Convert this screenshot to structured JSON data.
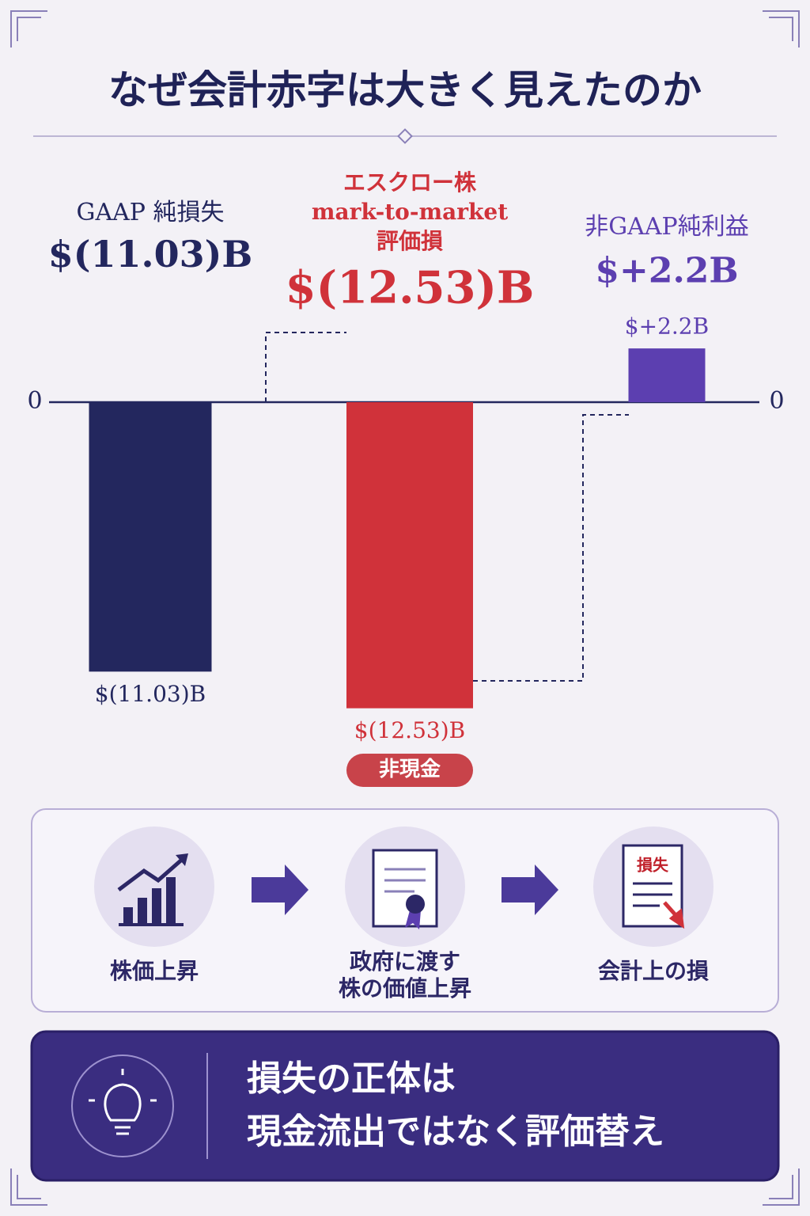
{
  "title": "なぜ会計赤字は大きく見えたのか",
  "chart_data": {
    "type": "bar",
    "categories": [
      "GAAP 純損失",
      "エスクロー株\nmark-to-market\n評価損",
      "非GAAP純利益"
    ],
    "values": [
      -11.03,
      -12.53,
      2.2
    ],
    "value_labels": [
      "$(11.03)B",
      "$(12.53)B",
      "$+2.2B"
    ],
    "colors": [
      "#23275e",
      "#d0323a",
      "#5c3fb0"
    ],
    "ylim": [
      -14,
      3.5
    ],
    "yticks": [
      0
    ],
    "annotations": [
      "非現金"
    ]
  },
  "flow": {
    "steps": [
      "株価上昇",
      "政府に渡す\n株の価値上昇",
      "会計上の損"
    ],
    "icon_text": "損失"
  },
  "conclusion": "損失の正体は\n現金流出ではなく評価替え"
}
